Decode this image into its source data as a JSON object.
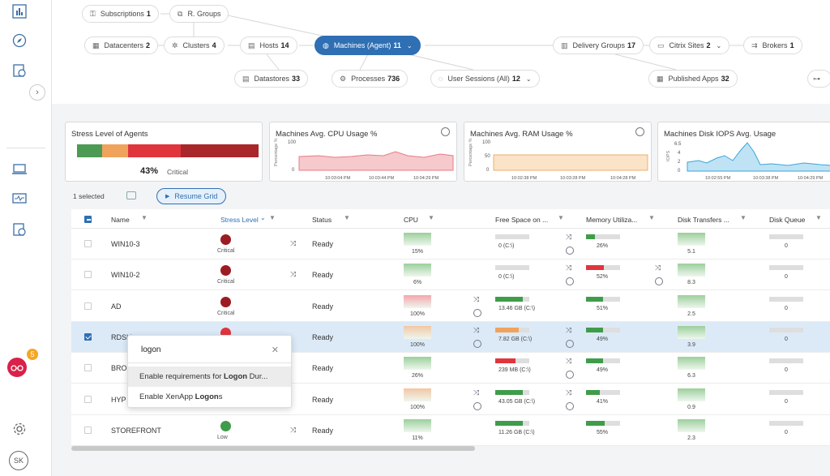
{
  "topology": {
    "subscriptions": {
      "label": "Subscriptions",
      "count": "1"
    },
    "rgroups": {
      "label": "R. Groups"
    },
    "datacenters": {
      "label": "Datacenters",
      "count": "2"
    },
    "clusters": {
      "label": "Clusters",
      "count": "4"
    },
    "hosts": {
      "label": "Hosts",
      "count": "14"
    },
    "machines": {
      "label": "Machines (Agent)",
      "count": "11"
    },
    "delivery_groups": {
      "label": "Delivery Groups",
      "count": "17"
    },
    "citrix_sites": {
      "label": "Citrix Sites",
      "count": "2"
    },
    "brokers": {
      "label": "Brokers",
      "count": "1"
    },
    "datastores": {
      "label": "Datastores",
      "count": "33"
    },
    "processes": {
      "label": "Processes",
      "count": "736"
    },
    "user_sessions": {
      "label": "User Sessions (All)",
      "count": "12"
    },
    "published_apps": {
      "label": "Published Apps",
      "count": "32"
    }
  },
  "cards": {
    "stress": {
      "title": "Stress Level of Agents",
      "value": "43%",
      "label": "Critical",
      "segments": [
        {
          "color": "#4c9a53",
          "share": 0.14
        },
        {
          "color": "#f0a35c",
          "share": 0.14
        },
        {
          "color": "#e0353d",
          "share": 0.29
        },
        {
          "color": "#a9262b",
          "share": 0.43
        }
      ]
    },
    "cpu": {
      "title": "Machines Avg. CPU Usage %",
      "y_label": "Percentage %",
      "y_ticks": [
        "100",
        "0"
      ],
      "x_ticks": [
        "10:03:04 PM",
        "10:03:44 PM",
        "10:04:29 PM"
      ]
    },
    "ram": {
      "title": "Machines Avg. RAM Usage %",
      "y_label": "Percentage %",
      "y_ticks": [
        "100",
        "50",
        "0"
      ],
      "x_ticks": [
        "10:02:38 PM",
        "10:03:28 PM",
        "10:04:28 PM"
      ]
    },
    "iops": {
      "title": "Machines Disk IOPS Avg. Usage",
      "y_label": "IOPS",
      "y_ticks": [
        "6.5",
        "4",
        "2",
        "0"
      ],
      "x_ticks": [
        "10:02:55 PM",
        "10:03:38 PM",
        "10:04:29 PM"
      ]
    }
  },
  "toolbar": {
    "selected": "1 selected",
    "resume": "Resume Grid"
  },
  "grid": {
    "headers": {
      "name": "Name",
      "stress": "Stress Level",
      "status": "Status",
      "cpu": "CPU",
      "free_space": "Free Space on ...",
      "memory": "Memory Utiliza...",
      "disk_transfers": "Disk Transfers ...",
      "disk_queue": "Disk Queue"
    },
    "rows": [
      {
        "name": "WIN10-3",
        "stress": "Critical",
        "stress_color": "#9b1c22",
        "status": "Ready",
        "cpu": "15%",
        "free": "0 (C:\\)",
        "mem": "26%",
        "disk": "5.1",
        "queue": "0"
      },
      {
        "name": "WIN10-2",
        "stress": "Critical",
        "stress_color": "#9b1c22",
        "status": "Ready",
        "cpu": "6%",
        "free": "0 (C:\\)",
        "mem": "52%",
        "disk": "8.3",
        "queue": "0"
      },
      {
        "name": "AD",
        "stress": "Critical",
        "stress_color": "#9b1c22",
        "status": "Ready",
        "cpu": "100%",
        "free": "13.46 GB (C:\\)",
        "mem": "51%",
        "disk": "2.5",
        "queue": "0"
      },
      {
        "name": "RDSH",
        "stress": "",
        "stress_color": "#e0353d",
        "status": "Ready",
        "cpu": "100%",
        "free": "7.82 GB (C:\\)",
        "mem": "49%",
        "disk": "3.9",
        "queue": "0"
      },
      {
        "name": "BRO",
        "stress": "",
        "stress_color": "#e0353d",
        "status": "Ready",
        "cpu": "26%",
        "free": "239 MB (C:\\)",
        "mem": "49%",
        "disk": "6.3",
        "queue": "0"
      },
      {
        "name": "HYP",
        "stress": "",
        "stress_color": "#e0353d",
        "status": "Ready",
        "cpu": "100%",
        "free": "43.05 GB (C:\\)",
        "mem": "41%",
        "disk": "0.9",
        "queue": "0"
      },
      {
        "name": "STOREFRONT",
        "stress": "Low",
        "stress_color": "#3f9c4a",
        "status": "Ready",
        "cpu": "11%",
        "free": "11.26 GB (C:\\)",
        "mem": "55%",
        "disk": "2.3",
        "queue": "0"
      }
    ]
  },
  "autocomplete": {
    "query": "logon",
    "items": [
      {
        "pre": "Enable requirements for ",
        "bold": "Logon",
        "post": " Dur..."
      },
      {
        "pre": "Enable XenApp ",
        "bold": "Logon",
        "post": "s"
      }
    ]
  },
  "sidebar": {
    "badge": "5",
    "avatar": "SK"
  }
}
